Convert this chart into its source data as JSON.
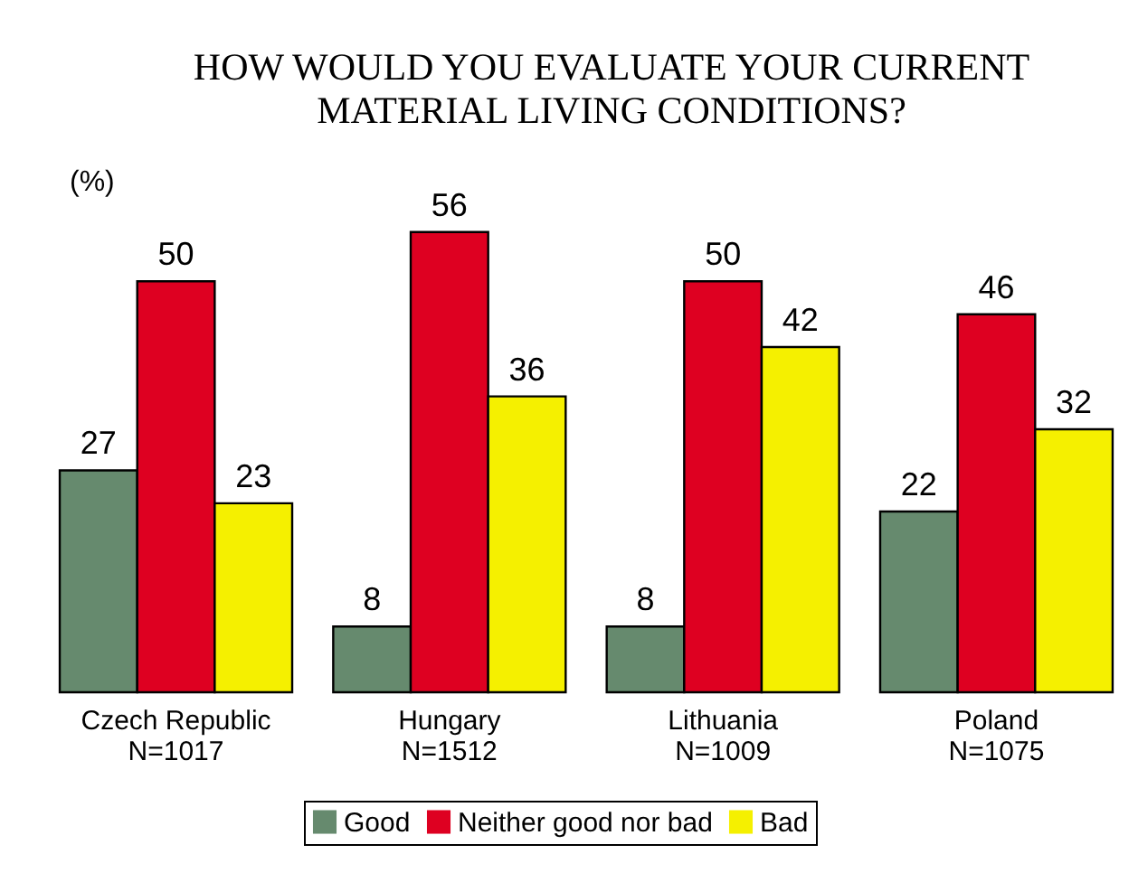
{
  "chart_data": {
    "type": "bar",
    "title": "HOW WOULD YOU EVALUATE YOUR CURRENT\nMATERIAL LIVING CONDITIONS?",
    "ylabel": "(%)",
    "categories": [
      "Czech Republic\nN=1017",
      "Hungary\nN=1512",
      "Lithuania\nN=1009",
      "Poland\nN=1075"
    ],
    "series": [
      {
        "name": "Good",
        "color": "#668a6e",
        "values": [
          27,
          8,
          8,
          22
        ]
      },
      {
        "name": "Neither good nor bad",
        "color": "#de0021",
        "values": [
          50,
          56,
          50,
          46
        ]
      },
      {
        "name": "Bad",
        "color": "#f5f000",
        "values": [
          23,
          36,
          42,
          32
        ]
      }
    ],
    "data_labels": true,
    "legend": "bottom",
    "tick_labels": "x"
  }
}
